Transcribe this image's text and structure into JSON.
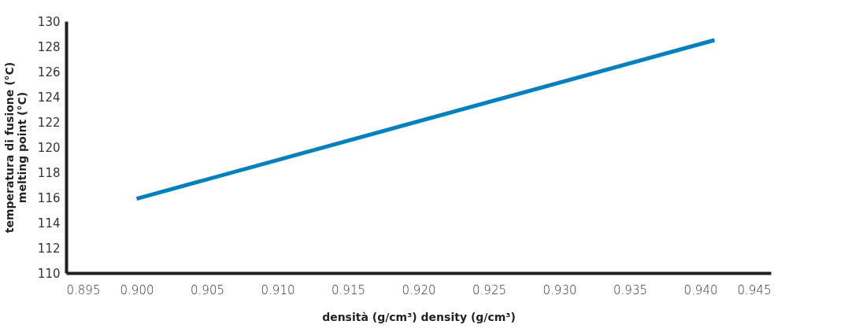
{
  "chart_data": {
    "type": "line",
    "xlabel": "densità (g/cm³)   density (g/cm³)",
    "ylabel": "temperatura di fusione (°C)\nmelting point (°C)",
    "x": [
      0.9,
      0.941
    ],
    "series": [
      {
        "color": "#0080bd",
        "values": [
          115.9,
          128.5
        ]
      }
    ],
    "xlim": [
      0.895,
      0.945
    ],
    "xticks": [
      0.895,
      {
        "value": 0.9,
        "label": "0.900"
      },
      0.905,
      {
        "value": 0.91,
        "label": "0.910"
      },
      0.915,
      {
        "value": 0.92,
        "label": "0.920"
      },
      0.925,
      {
        "value": 0.93,
        "label": "0.930"
      },
      0.935,
      {
        "value": 0.94,
        "label": "0.940"
      },
      0.945
    ],
    "ylim": [
      110,
      130
    ],
    "yticks": [
      110,
      112,
      114,
      116,
      118,
      120,
      122,
      124,
      126,
      128,
      130
    ],
    "grid": false,
    "legend": false,
    "marker": "none",
    "line_style": "solid"
  }
}
